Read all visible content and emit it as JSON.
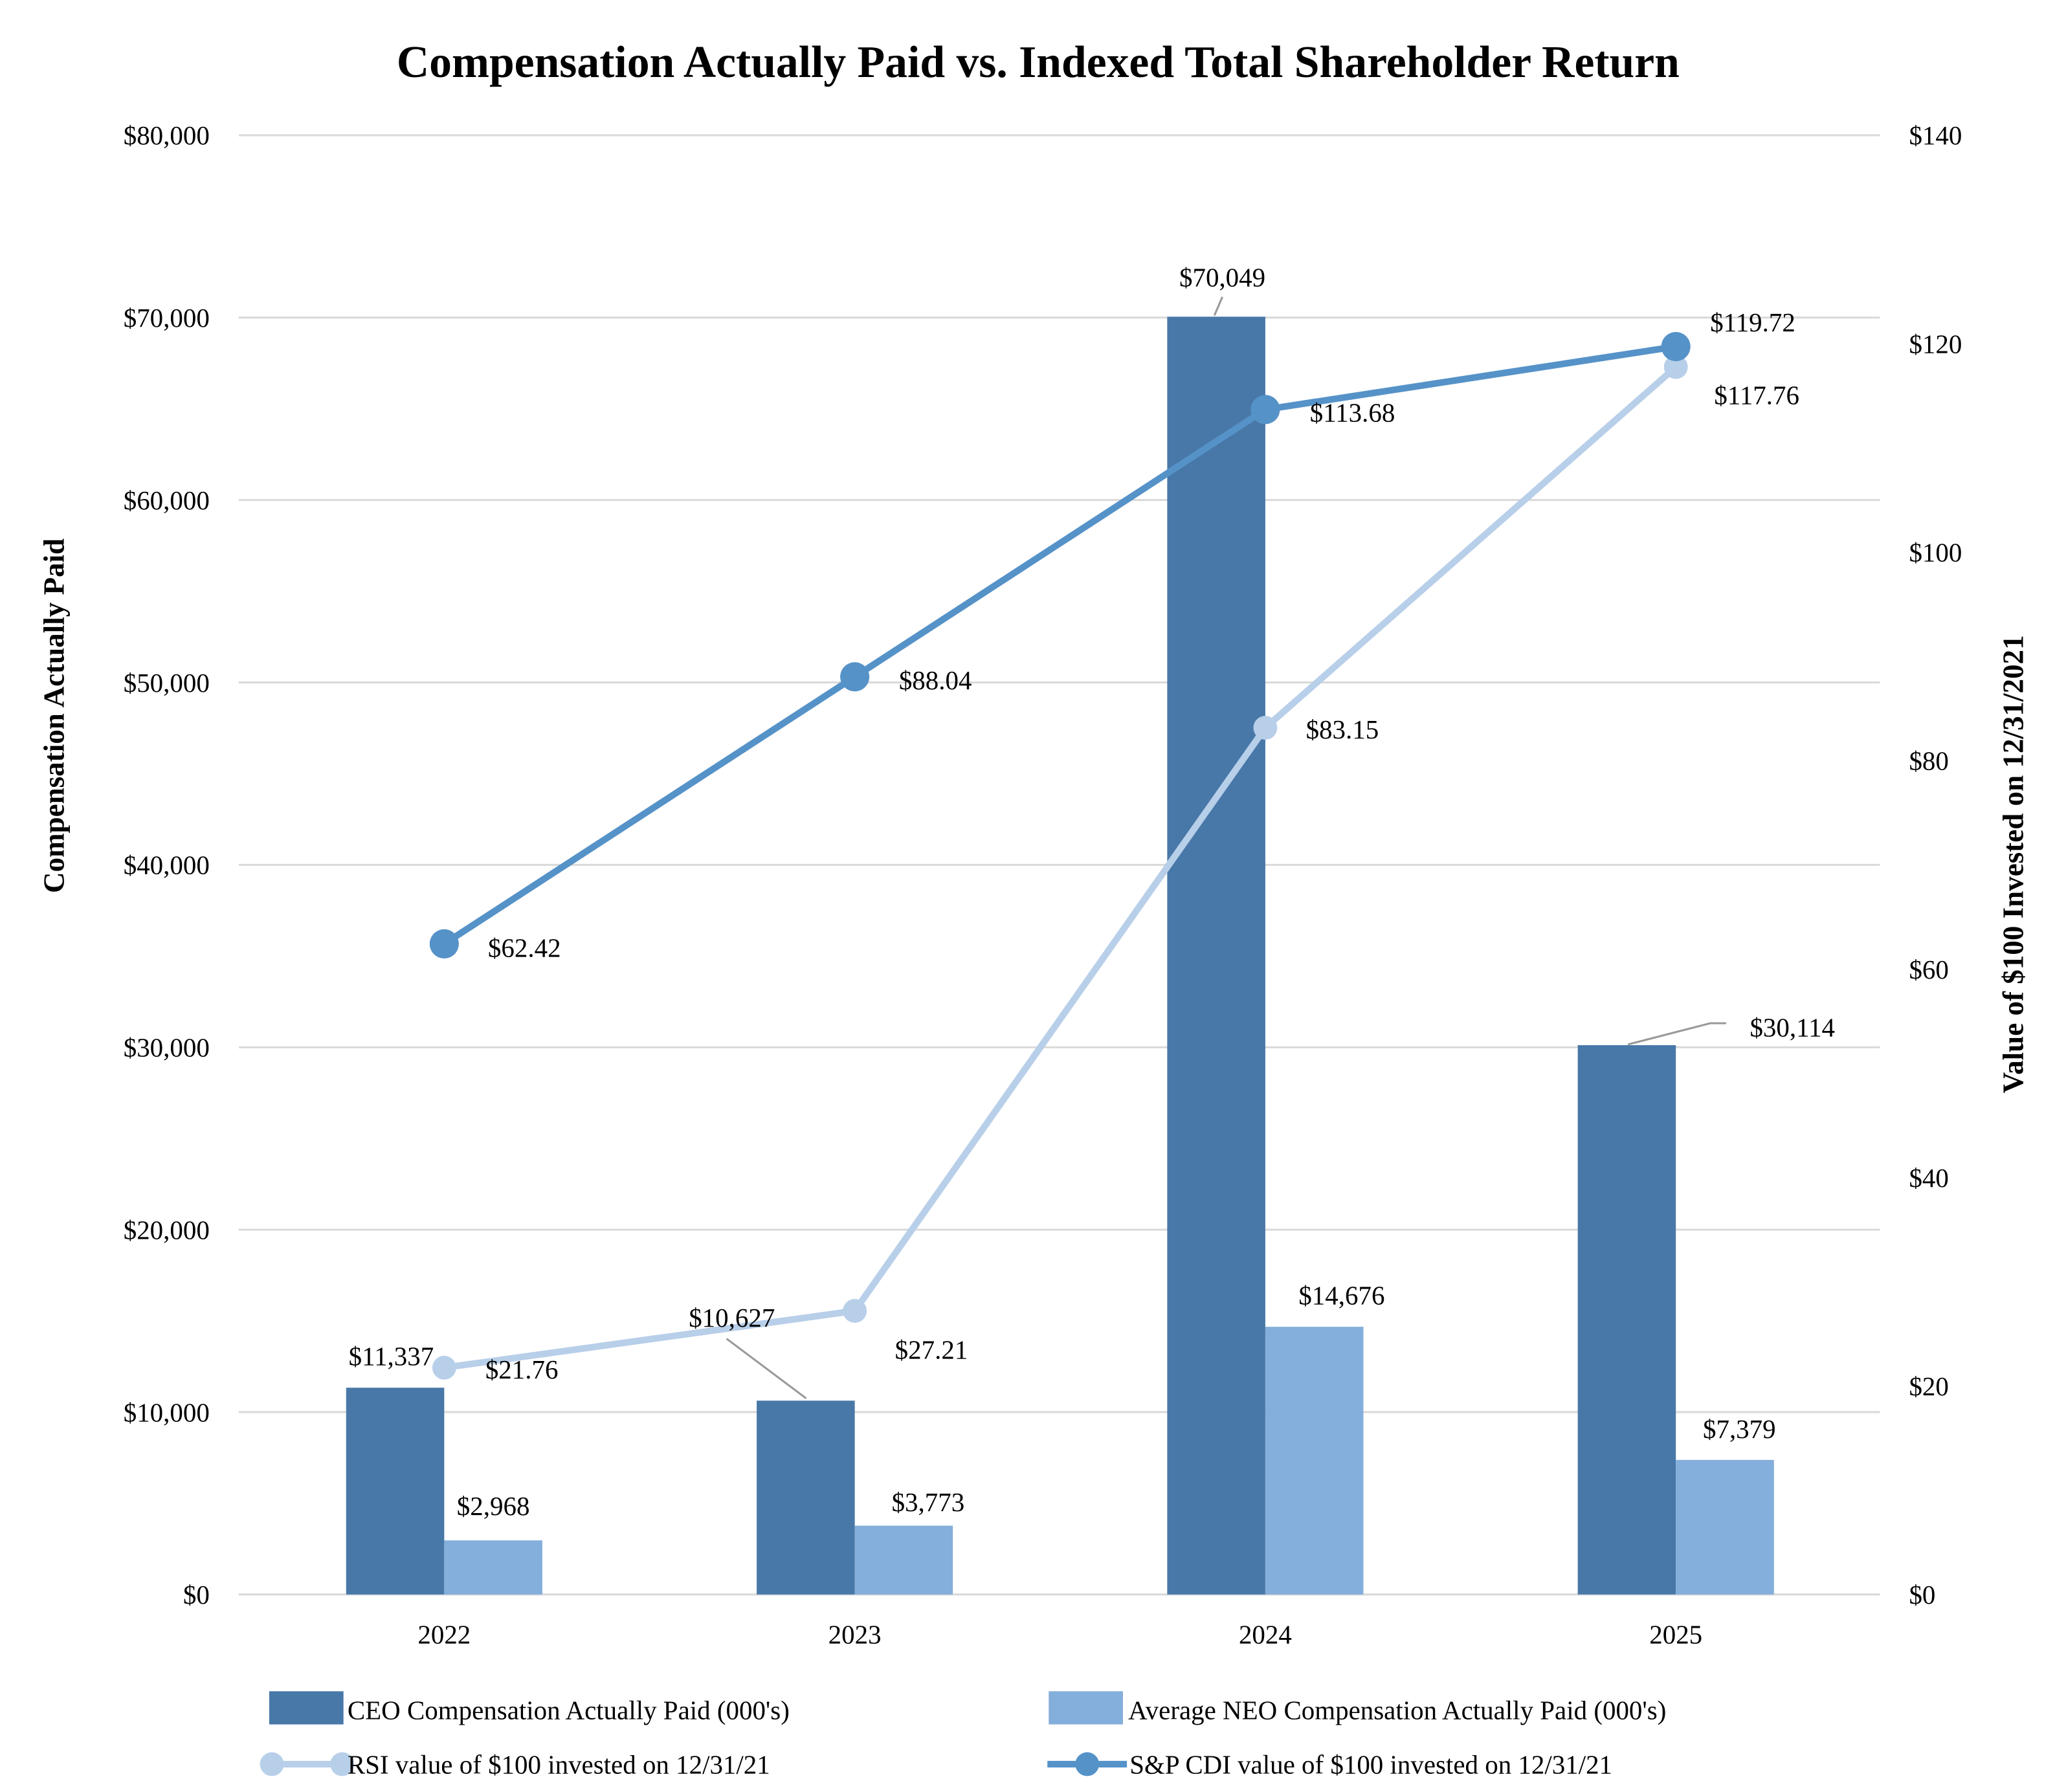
{
  "chart_data": {
    "type": "bar",
    "title": "Compensation Actually Paid vs. Indexed Total Shareholder Return",
    "categories": [
      "2022",
      "2023",
      "2024",
      "2025"
    ],
    "ylabel": "Compensation Actually Paid",
    "y2label": "Value of $100 Invested on 12/31/2021",
    "ylim": [
      0,
      80000
    ],
    "y2lim": [
      0,
      140
    ],
    "yticks": [
      "$0",
      "$10,000",
      "$20,000",
      "$30,000",
      "$40,000",
      "$50,000",
      "$60,000",
      "$70,000",
      "$80,000"
    ],
    "y2ticks": [
      "$0",
      "$20",
      "$40",
      "$60",
      "$80",
      "$100",
      "$120",
      "$140"
    ],
    "grid": true,
    "legend_position": "bottom",
    "series": [
      {
        "name": "CEO Compensation Actually Paid (000's)",
        "type": "bar",
        "axis": "left",
        "color": "#4878a8",
        "values": [
          11337,
          10627,
          70049,
          30114
        ],
        "labels": [
          "$11,337",
          "$10,627",
          "$70,049",
          "$30,114"
        ]
      },
      {
        "name": "Average NEO Compensation Actually Paid (000's)",
        "type": "bar",
        "axis": "left",
        "color": "#84aedb",
        "values": [
          2968,
          3773,
          14676,
          7379
        ],
        "labels": [
          "$2,968",
          "$3,773",
          "$14,676",
          "$7,379"
        ]
      },
      {
        "name": "RSI value of $100 invested on 12/31/21",
        "type": "line",
        "axis": "right",
        "color": "#b8cfe9",
        "values": [
          21.76,
          27.21,
          83.15,
          117.76
        ],
        "labels": [
          "$21.76",
          "$27.21",
          "$83.15",
          "$117.76"
        ]
      },
      {
        "name": "S&P CDI value of $100 invested on 12/31/21",
        "type": "line",
        "axis": "right",
        "color": "#5592c8",
        "values": [
          62.42,
          88.04,
          113.68,
          119.72
        ],
        "labels": [
          "$62.42",
          "$88.04",
          "$113.68",
          "$119.72"
        ]
      }
    ]
  }
}
